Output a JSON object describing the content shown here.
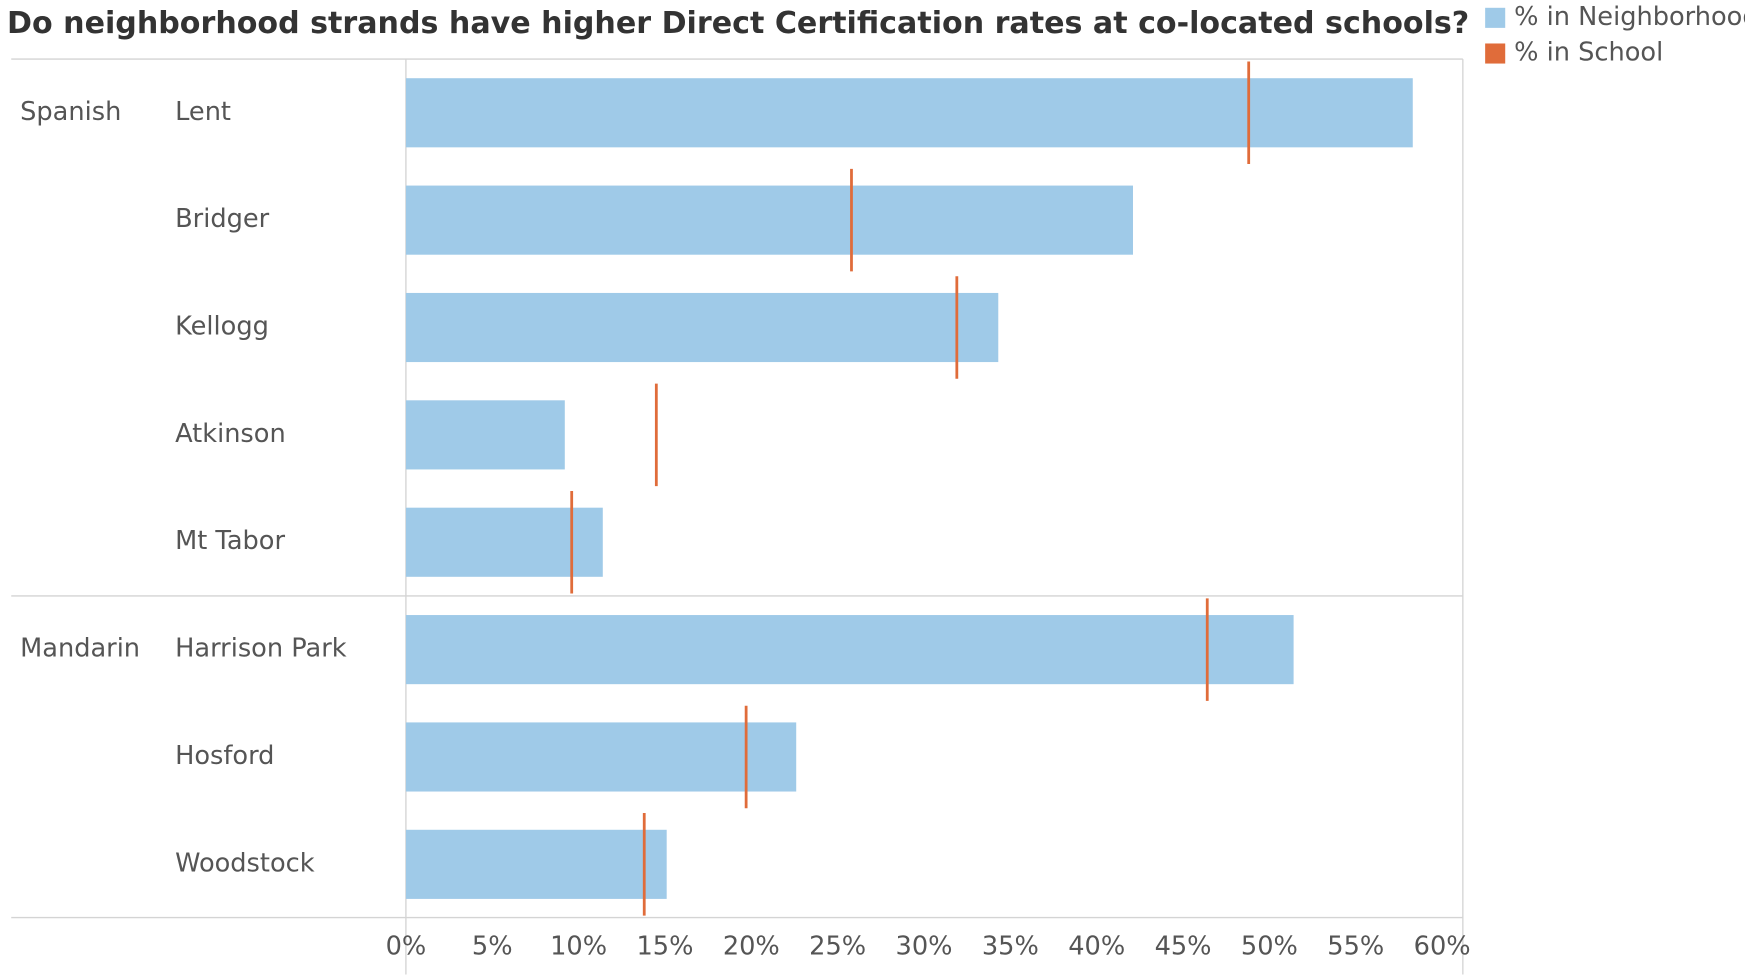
{
  "chart_data": {
    "type": "bar",
    "title": "Do neighborhood strands have higher Direct Certification rates at co-located schools?",
    "row_groups": [
      "Spanish",
      null,
      null,
      null,
      null,
      "Mandarin",
      null,
      null
    ],
    "categories": [
      "Lent",
      "Bridger",
      "Kellogg",
      "Atkinson",
      "Mt Tabor",
      "Harrison Park",
      "Hosford",
      "Woodstock"
    ],
    "series": [
      {
        "name": "% in Neighborhood",
        "color": "#9fcae8",
        "mark": "bar",
        "values": [
          58.3,
          42.1,
          34.3,
          9.2,
          11.4,
          51.4,
          22.6,
          15.1
        ]
      },
      {
        "name": "% in School",
        "color": "#e06c3a",
        "mark": "tick",
        "values": [
          48.8,
          25.8,
          31.9,
          14.5,
          9.6,
          46.4,
          19.7,
          13.8
        ]
      }
    ],
    "xlim": [
      0,
      61.2
    ],
    "xticks": [
      {
        "value": 0,
        "label": "0%"
      },
      {
        "value": 5,
        "label": "5%"
      },
      {
        "value": 10,
        "label": "10%"
      },
      {
        "value": 15,
        "label": "15%"
      },
      {
        "value": 20,
        "label": "20%"
      },
      {
        "value": 25,
        "label": "25%"
      },
      {
        "value": 30,
        "label": "30%"
      },
      {
        "value": 35,
        "label": "35%"
      },
      {
        "value": 40,
        "label": "40%"
      },
      {
        "value": 45,
        "label": "45%"
      },
      {
        "value": 50,
        "label": "50%"
      },
      {
        "value": 55,
        "label": "55%"
      },
      {
        "value": 60,
        "label": "60%"
      }
    ],
    "legend": "top-right"
  }
}
